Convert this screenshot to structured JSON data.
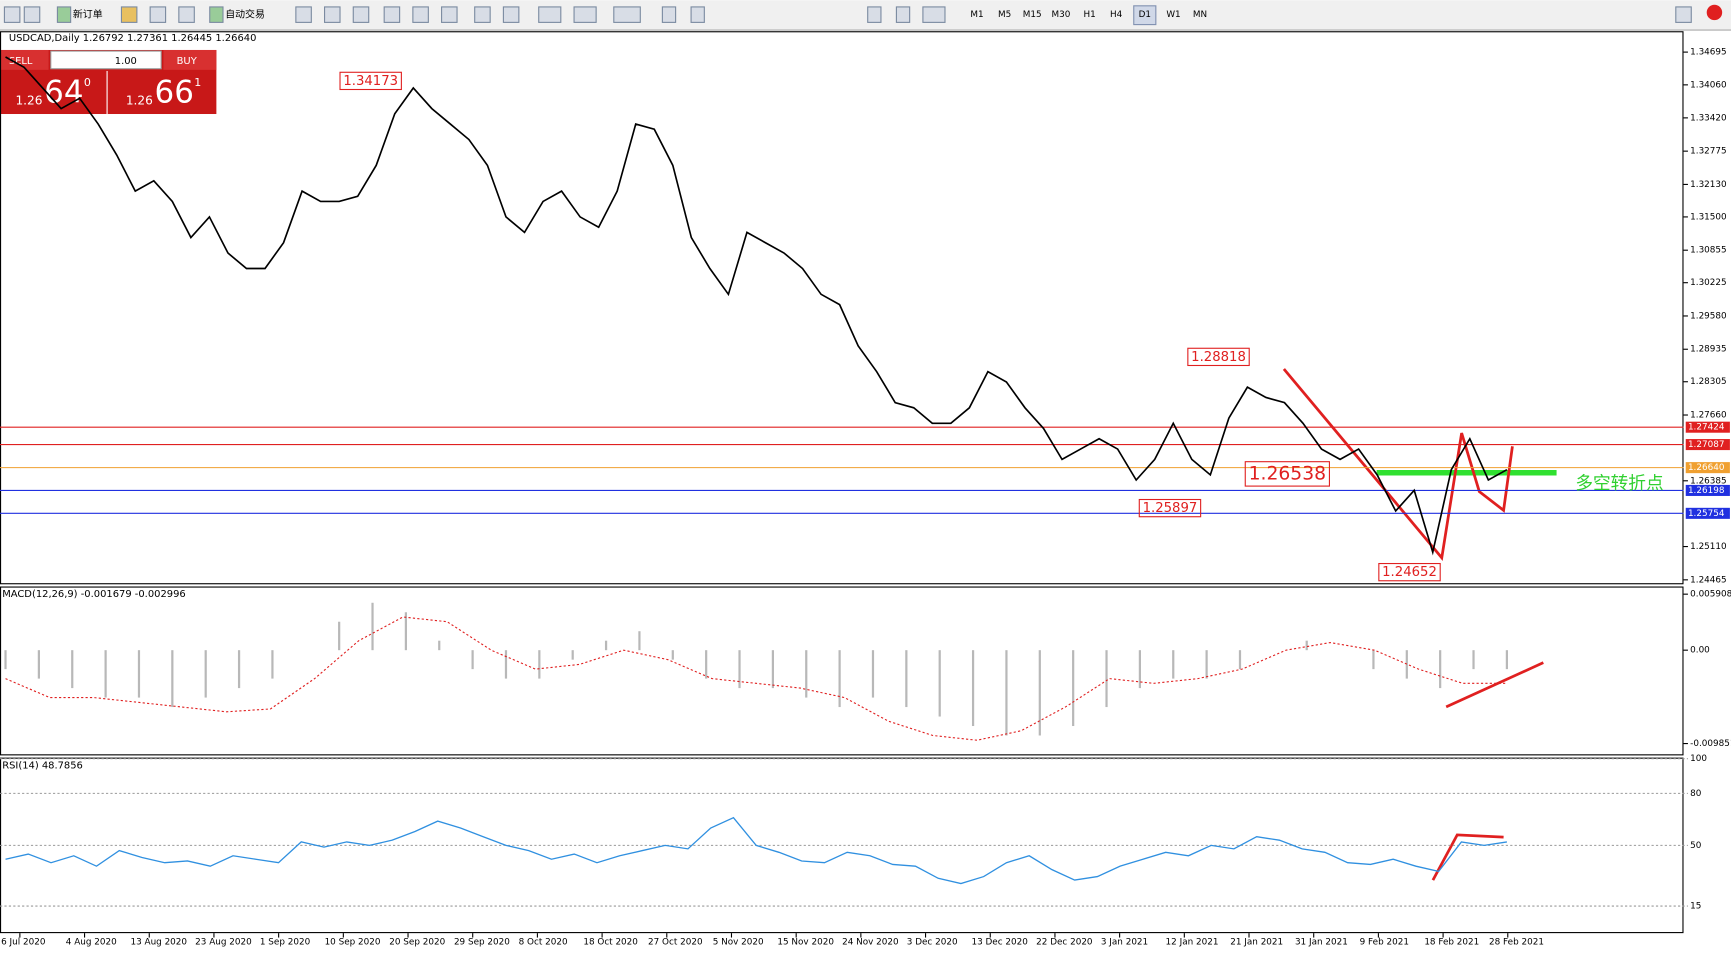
{
  "toolbar": {
    "new_order": "新订单",
    "auto_trade": "自动交易",
    "timeframes": [
      "M1",
      "M5",
      "M15",
      "M30",
      "H1",
      "H4",
      "D1",
      "W1",
      "MN"
    ]
  },
  "trade_panel": {
    "sell": "SELL",
    "buy": "BUY",
    "lots": "1.00",
    "sell_big": "1.26",
    "sell_pips": "64",
    "sell_frac": "0",
    "buy_big": "1.26",
    "buy_pips": "66",
    "buy_frac": "1"
  },
  "main": {
    "header": "USDCAD,Daily  1.26792 1.27361 1.26445 1.26640",
    "price_range": [
      1.351,
      1.244
    ],
    "price_ticks": [
      {
        "value": 1.34695,
        "label": "1.34695"
      },
      {
        "value": 1.3406,
        "label": "1.34060"
      },
      {
        "value": 1.3342,
        "label": "1.33420"
      },
      {
        "value": 1.32775,
        "label": "1.32775"
      },
      {
        "value": 1.3213,
        "label": "1.32130"
      },
      {
        "value": 1.315,
        "label": "1.31500"
      },
      {
        "value": 1.30855,
        "label": "1.30855"
      },
      {
        "value": 1.30225,
        "label": "1.30225"
      },
      {
        "value": 1.2958,
        "label": "1.29580"
      },
      {
        "value": 1.28935,
        "label": "1.28935"
      },
      {
        "value": 1.28305,
        "label": "1.28305"
      },
      {
        "value": 1.2766,
        "label": "1.27660"
      },
      {
        "value": 1.26385,
        "label": "1.26385"
      },
      {
        "value": 1.2511,
        "label": "1.25110"
      },
      {
        "value": 1.24465,
        "label": "1.24465"
      }
    ],
    "levels": [
      {
        "value": 1.27424,
        "label": "1.27424",
        "color": "#e02020"
      },
      {
        "value": 1.27087,
        "label": "1.27087",
        "color": "#e02020"
      },
      {
        "value": 1.2664,
        "label": "1.26640",
        "color": "#f0a030"
      },
      {
        "value": 1.26198,
        "label": "1.26198",
        "color": "#2030e0"
      },
      {
        "value": 1.25754,
        "label": "1.25754",
        "color": "#2030e0"
      }
    ],
    "closes": [
      1.346,
      1.344,
      1.34,
      1.336,
      1.338,
      1.333,
      1.327,
      1.32,
      1.322,
      1.318,
      1.311,
      1.315,
      1.308,
      1.305,
      1.305,
      1.31,
      1.32,
      1.318,
      1.318,
      1.319,
      1.325,
      1.335,
      1.34,
      1.336,
      1.333,
      1.33,
      1.325,
      1.315,
      1.312,
      1.318,
      1.32,
      1.315,
      1.313,
      1.32,
      1.333,
      1.332,
      1.325,
      1.311,
      1.305,
      1.3,
      1.312,
      1.31,
      1.308,
      1.305,
      1.3,
      1.298,
      1.29,
      1.285,
      1.279,
      1.278,
      1.275,
      1.275,
      1.278,
      1.285,
      1.283,
      1.278,
      1.274,
      1.268,
      1.27,
      1.272,
      1.27,
      1.264,
      1.268,
      1.275,
      1.268,
      1.265,
      1.276,
      1.282,
      1.28,
      1.279,
      1.275,
      1.27,
      1.268,
      1.27,
      1.265,
      1.258,
      1.262,
      1.25,
      1.266,
      1.272,
      1.264,
      1.266
    ],
    "annotations": [
      "1.34173",
      "1.28818",
      "1.26538",
      "1.25897",
      "1.24652",
      "多空转折点"
    ]
  },
  "macd": {
    "header": "MACD(12,26,9) -0.001679 -0.002996",
    "range": [
      0.0066,
      -0.0111
    ],
    "ticks": [
      {
        "value": 0.005908,
        "label": "0.005908"
      },
      {
        "value": 0,
        "label": "0.00"
      },
      {
        "value": -0.009851,
        "label": "-0.009851"
      }
    ],
    "histogram": [
      -0.002,
      -0.003,
      -0.004,
      -0.005,
      -0.005,
      -0.006,
      -0.005,
      -0.004,
      -0.003,
      0.0,
      0.003,
      0.005,
      0.004,
      0.001,
      -0.002,
      -0.003,
      -0.003,
      -0.001,
      0.001,
      0.002,
      -0.001,
      -0.003,
      -0.004,
      -0.004,
      -0.005,
      -0.006,
      -0.005,
      -0.006,
      -0.007,
      -0.008,
      -0.009,
      -0.009,
      -0.008,
      -0.006,
      -0.004,
      -0.003,
      -0.003,
      -0.002,
      0.0,
      0.001,
      0.0,
      -0.002,
      -0.003,
      -0.004,
      -0.002,
      -0.002
    ],
    "signal": [
      -0.003,
      -0.005,
      -0.005,
      -0.0055,
      -0.006,
      -0.0065,
      -0.0062,
      -0.003,
      0.001,
      0.0035,
      0.003,
      0.0,
      -0.002,
      -0.0015,
      0.0,
      -0.001,
      -0.003,
      -0.0035,
      -0.004,
      -0.005,
      -0.0075,
      -0.009,
      -0.0095,
      -0.0085,
      -0.006,
      -0.003,
      -0.0035,
      -0.003,
      -0.002,
      0.0,
      0.0008,
      0.0,
      -0.002,
      -0.0035,
      -0.0035
    ]
  },
  "rsi": {
    "header": "RSI(14) 48.7856",
    "range": [
      100,
      0
    ],
    "ticks": [
      100,
      80,
      50,
      15
    ],
    "values": [
      42,
      45,
      40,
      44,
      38,
      47,
      43,
      40,
      41,
      38,
      44,
      42,
      40,
      52,
      49,
      52,
      50,
      53,
      58,
      64,
      60,
      55,
      50,
      47,
      42,
      45,
      40,
      44,
      47,
      50,
      48,
      60,
      66,
      50,
      46,
      41,
      40,
      46,
      44,
      39,
      38,
      31,
      28,
      32,
      40,
      44,
      36,
      30,
      32,
      38,
      42,
      46,
      44,
      50,
      48,
      55,
      53,
      48,
      46,
      40,
      39,
      42,
      38,
      35,
      52,
      50,
      52
    ]
  }
}
